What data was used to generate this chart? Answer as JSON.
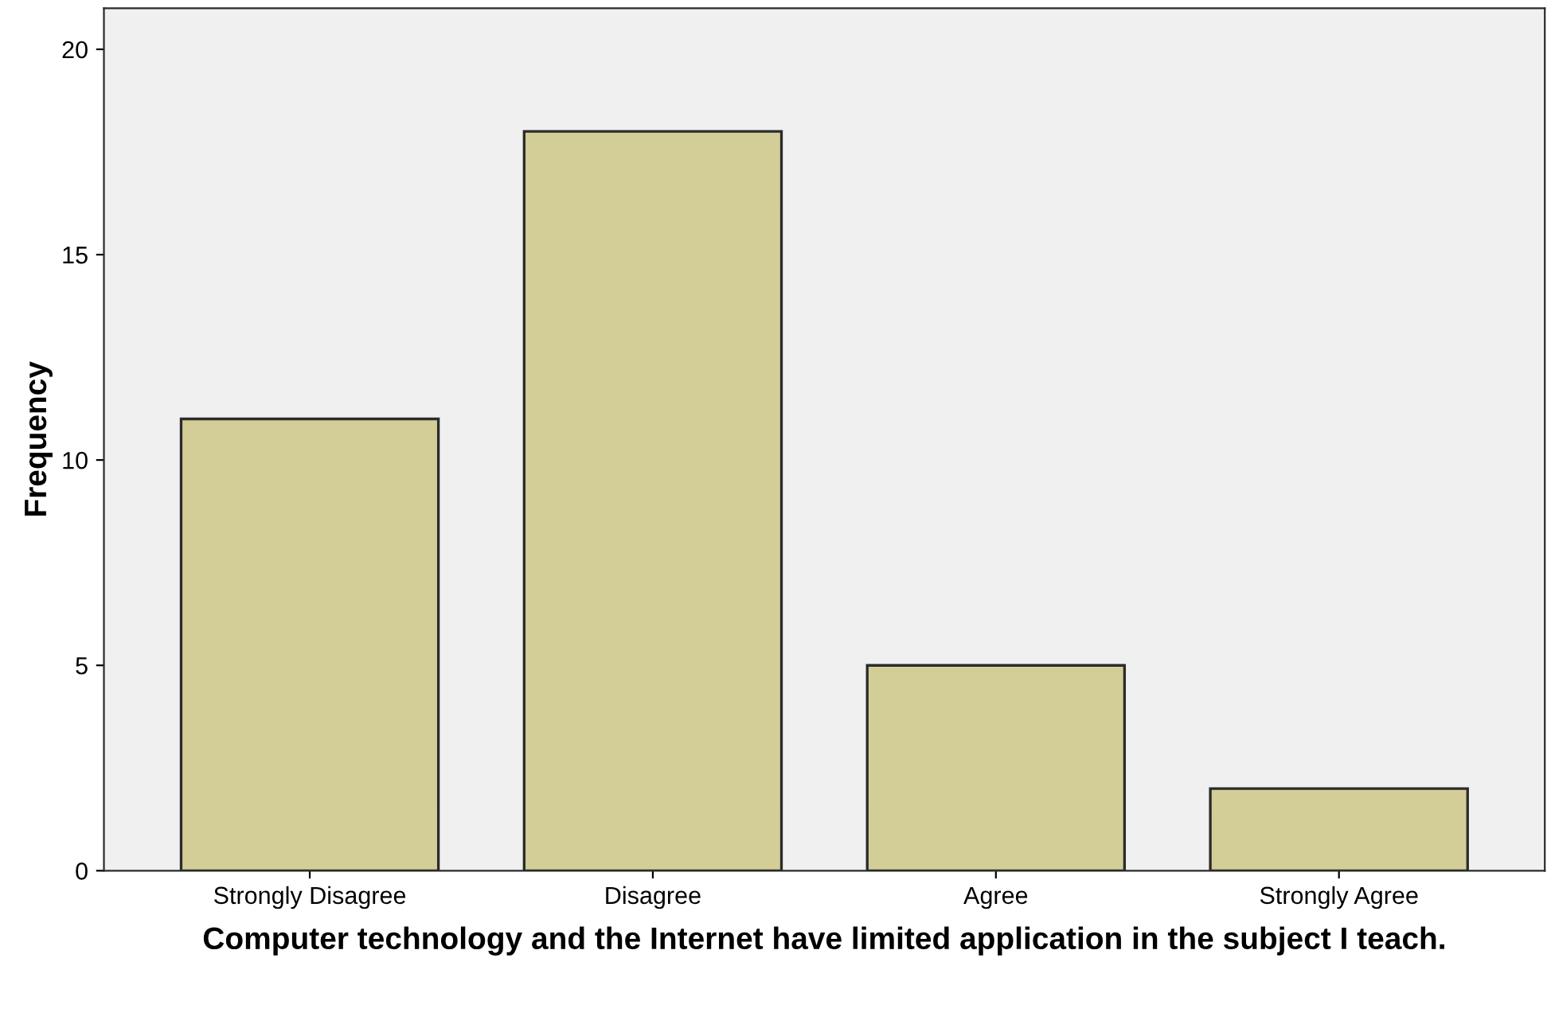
{
  "chart_data": {
    "type": "bar",
    "categories": [
      "Strongly Disagree",
      "Disagree",
      "Agree",
      "Strongly Agree"
    ],
    "values": [
      11,
      18,
      5,
      2
    ],
    "color": "#d3ce97",
    "xlabel": "Computer technology and the Internet have limited application in the subject I teach.",
    "ylabel": "Frequency",
    "ylim": [
      0,
      21
    ],
    "yticks": [
      0,
      5,
      10,
      15,
      20
    ],
    "grid": false,
    "legend": false
  }
}
